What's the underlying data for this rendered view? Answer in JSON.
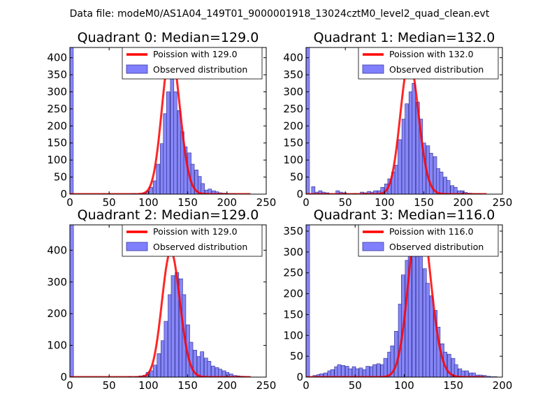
{
  "figure_title": "Data file: modeM0/AS1A04_149T01_9000001918_13024cztM0_level2_quad_clean.evt",
  "colors": {
    "hist_fill": "#7f7ff7",
    "hist_edge": "#2a2a8a",
    "poisson_line": "#ff0000",
    "legend_hist_fill": "#8080ff",
    "legend_hist_edge": "#3a3aa0"
  },
  "chart_data": [
    {
      "type": "bar",
      "title": "Quadrant 0: Median=129.0",
      "xlim": [
        0,
        250
      ],
      "ylim": [
        0,
        430
      ],
      "xticks": [
        "0",
        "50",
        "100",
        "150",
        "200",
        "250"
      ],
      "yticks": [
        "0",
        "50",
        "100",
        "150",
        "200",
        "250",
        "300",
        "350",
        "400"
      ],
      "ytick_values": [
        0,
        50,
        100,
        150,
        200,
        250,
        300,
        350,
        400
      ],
      "xtick_values": [
        0,
        50,
        100,
        150,
        200,
        250
      ],
      "bin_width": 4.4,
      "bins_x": [
        0,
        79,
        84,
        88,
        93,
        97,
        101,
        106,
        110,
        115,
        119,
        123,
        128,
        132,
        137,
        141,
        145,
        150,
        154,
        159,
        163,
        167,
        172,
        176,
        181,
        185,
        189,
        194,
        198,
        203,
        207
      ],
      "bins_y": [
        430,
        2,
        0,
        2,
        4,
        9,
        20,
        39,
        88,
        148,
        236,
        300,
        350,
        300,
        245,
        183,
        139,
        121,
        88,
        71,
        52,
        31,
        12,
        15,
        10,
        7,
        4,
        3,
        2,
        1,
        1
      ],
      "poisson_mean": 129.0,
      "legend": [
        "Poission with 129.0",
        "Observed distribution"
      ]
    },
    {
      "type": "bar",
      "title": "Quadrant 1: Median=132.0",
      "xlim": [
        0,
        250
      ],
      "ylim": [
        0,
        430
      ],
      "xticks": [
        "0",
        "50",
        "100",
        "150",
        "200",
        "250"
      ],
      "yticks": [
        "0",
        "50",
        "100",
        "150",
        "200",
        "250",
        "300",
        "350",
        "400"
      ],
      "ytick_values": [
        0,
        50,
        100,
        150,
        200,
        250,
        300,
        350,
        400
      ],
      "xtick_values": [
        0,
        50,
        100,
        150,
        200,
        250
      ],
      "bin_width": 4.4,
      "bins_x": [
        0,
        7,
        11,
        16,
        20,
        25,
        38,
        42,
        47,
        60,
        69,
        73,
        78,
        82,
        86,
        91,
        95,
        100,
        104,
        109,
        113,
        117,
        122,
        126,
        131,
        135,
        140,
        144,
        148,
        153,
        157,
        162,
        166,
        170,
        175,
        179,
        184,
        188,
        193,
        197,
        201,
        206,
        210,
        215,
        219
      ],
      "bins_y": [
        430,
        22,
        6,
        10,
        6,
        4,
        10,
        6,
        4,
        2,
        6,
        4,
        8,
        6,
        10,
        10,
        20,
        30,
        45,
        65,
        85,
        160,
        220,
        265,
        300,
        325,
        270,
        220,
        150,
        142,
        120,
        110,
        75,
        65,
        50,
        40,
        25,
        20,
        10,
        10,
        5,
        3,
        2,
        1,
        1
      ],
      "poisson_mean": 132.0,
      "legend": [
        "Poission with 132.0",
        "Observed distribution"
      ]
    },
    {
      "type": "bar",
      "title": "Quadrant 2: Median=129.0",
      "xlim": [
        0,
        250
      ],
      "ylim": [
        0,
        480
      ],
      "xticks": [
        "0",
        "50",
        "100",
        "150",
        "200",
        "250"
      ],
      "yticks": [
        "0",
        "100",
        "200",
        "300",
        "400"
      ],
      "ytick_values": [
        0,
        100,
        200,
        300,
        400
      ],
      "xtick_values": [
        0,
        50,
        100,
        150,
        200,
        250
      ],
      "bin_width": 4.6,
      "bins_x": [
        0,
        74,
        79,
        83,
        88,
        93,
        97,
        102,
        106,
        111,
        116,
        120,
        125,
        129,
        134,
        139,
        143,
        148,
        152,
        157,
        162,
        166,
        171,
        175,
        180,
        185,
        189,
        194,
        198,
        203,
        208,
        212,
        217,
        221,
        226
      ],
      "bins_y": [
        480,
        2,
        0,
        2,
        4,
        6,
        15,
        20,
        38,
        74,
        115,
        176,
        260,
        320,
        330,
        310,
        260,
        165,
        110,
        85,
        65,
        80,
        60,
        50,
        35,
        30,
        25,
        20,
        15,
        10,
        5,
        4,
        3,
        2,
        1
      ],
      "poisson_mean": 129.0,
      "legend": [
        "Poission with 129.0",
        "Observed distribution"
      ]
    },
    {
      "type": "bar",
      "title": "Quadrant 3: Median=116.0",
      "xlim": [
        0,
        200
      ],
      "ylim": [
        0,
        365
      ],
      "xticks": [
        "0",
        "50",
        "100",
        "150",
        "200"
      ],
      "yticks": [
        "0",
        "50",
        "100",
        "150",
        "200",
        "250",
        "300",
        "350"
      ],
      "ytick_values": [
        0,
        50,
        100,
        150,
        200,
        250,
        300,
        350
      ],
      "xtick_values": [
        0,
        50,
        100,
        150,
        200
      ],
      "bin_width": 3.6,
      "bins_x": [
        0,
        7,
        11,
        14,
        18,
        22,
        25,
        29,
        32,
        36,
        40,
        43,
        47,
        50,
        54,
        58,
        61,
        65,
        68,
        72,
        76,
        79,
        83,
        86,
        90,
        94,
        97,
        101,
        104,
        108,
        112,
        115,
        119,
        122,
        126,
        130,
        133,
        137,
        140,
        144,
        148,
        151,
        155,
        158,
        162,
        166,
        169,
        173,
        176,
        180,
        184,
        187,
        191
      ],
      "bins_y": [
        365,
        4,
        6,
        8,
        10,
        15,
        18,
        25,
        30,
        28,
        26,
        20,
        25,
        20,
        22,
        18,
        26,
        25,
        30,
        32,
        30,
        45,
        60,
        75,
        110,
        175,
        245,
        280,
        325,
        340,
        325,
        300,
        260,
        225,
        195,
        160,
        120,
        80,
        60,
        55,
        45,
        30,
        20,
        15,
        15,
        10,
        10,
        5,
        5,
        4,
        2,
        1,
        1
      ],
      "poisson_mean": 116.0,
      "legend": [
        "Poission with 116.0",
        "Observed distribution"
      ]
    }
  ]
}
